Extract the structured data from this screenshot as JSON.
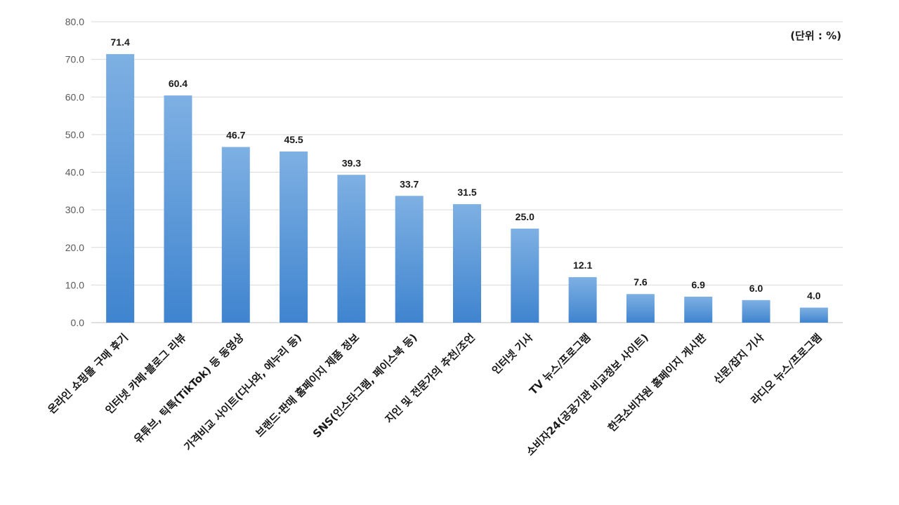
{
  "chart_data": {
    "type": "bar",
    "unit_label": "(단위 : %)",
    "categories": [
      "온라인 쇼핑몰 구매 후기",
      "인터넷 카페·블로그 리뷰",
      "유튜브, 틱톡(TikTok) 등 동영상",
      "가격비교 사이트(다나와, 에누리 등)",
      "브랜드·판매 홈페이지 제품 정보",
      "SNS(인스타그램, 페이스북 등)",
      "지인 및 전문가의 추천/조언",
      "인터넷 기사",
      "TV 뉴스/프로그램",
      "소비자24(공공기관 비교정보 사이트)",
      "한국소비자원 홈페이지 게시판",
      "신문/잡지 기사",
      "라디오 뉴스/프로그램"
    ],
    "values": [
      71.4,
      60.4,
      46.7,
      45.5,
      39.3,
      33.7,
      31.5,
      25.0,
      12.1,
      7.6,
      6.9,
      6.0,
      4.0
    ],
    "value_labels": [
      "71.4",
      "60.4",
      "46.7",
      "45.5",
      "39.3",
      "33.7",
      "31.5",
      "25.0",
      "12.1",
      "7.6",
      "6.9",
      "6.0",
      "4.0"
    ],
    "ylim": [
      0,
      80
    ],
    "yticks": [
      "0.0",
      "10.0",
      "20.0",
      "30.0",
      "40.0",
      "50.0",
      "60.0",
      "70.0",
      "80.0"
    ],
    "grid": true,
    "colors": {
      "bar_top": "#7eb0e3",
      "bar_bottom": "#3f84cf"
    }
  }
}
